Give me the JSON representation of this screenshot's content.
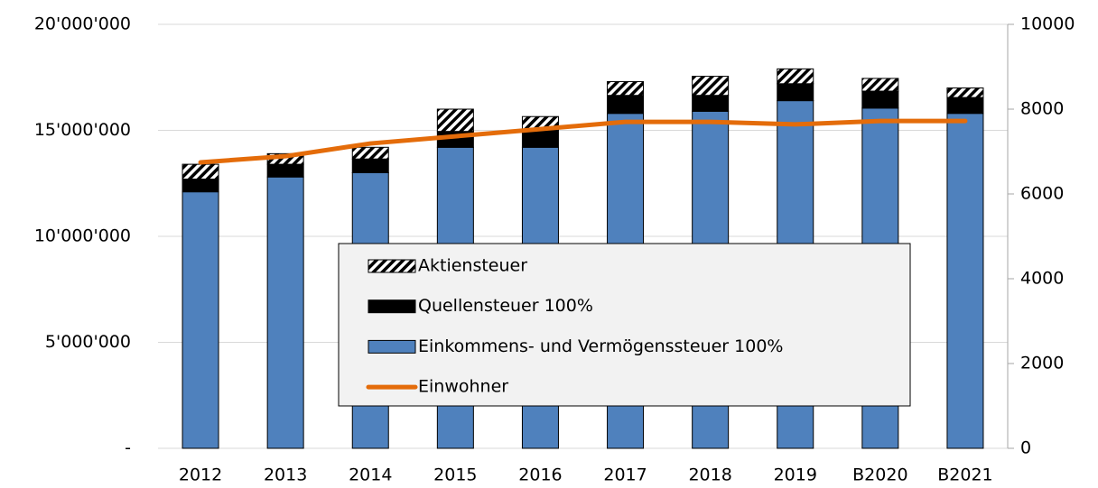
{
  "chart_data": {
    "type": "bar",
    "categories": [
      "2012",
      "2013",
      "2014",
      "2015",
      "2016",
      "2017",
      "2018",
      "2019",
      "B2020",
      "B2021"
    ],
    "stacked": true,
    "series": [
      {
        "name": "Einkommens- und Vermögenssteuer 100%",
        "color": "#4f81bd",
        "values": [
          12100000,
          12800000,
          13000000,
          14200000,
          14200000,
          15800000,
          15900000,
          16400000,
          16050000,
          15800000
        ]
      },
      {
        "name": "Quellensteuer 100%",
        "color": "#000000",
        "values": [
          600000,
          600000,
          650000,
          750000,
          800000,
          850000,
          750000,
          800000,
          800000,
          750000
        ]
      },
      {
        "name": "Aktiensteuer",
        "color": "#000000",
        "pattern": "diagonal-hatch",
        "values": [
          700000,
          500000,
          550000,
          1050000,
          650000,
          650000,
          900000,
          700000,
          600000,
          450000
        ]
      },
      {
        "name": "Einwohner",
        "type": "line",
        "axis": "y2",
        "color": "#e46c0a",
        "values": [
          6745,
          6890,
          7190,
          7360,
          7530,
          7700,
          7700,
          7640,
          7720,
          7720
        ]
      }
    ],
    "ylim": [
      0,
      20000000
    ],
    "yticks": [
      {
        "value": 0,
        "label": "-"
      },
      {
        "value": 5000000,
        "label": "5'000'000"
      },
      {
        "value": 10000000,
        "label": "10'000'000"
      },
      {
        "value": 15000000,
        "label": "15'000'000"
      },
      {
        "value": 20000000,
        "label": "20'000'000"
      }
    ],
    "y2lim": [
      0,
      10000
    ],
    "y2ticks": [
      0,
      2000,
      4000,
      6000,
      8000,
      10000
    ],
    "grid": true
  }
}
